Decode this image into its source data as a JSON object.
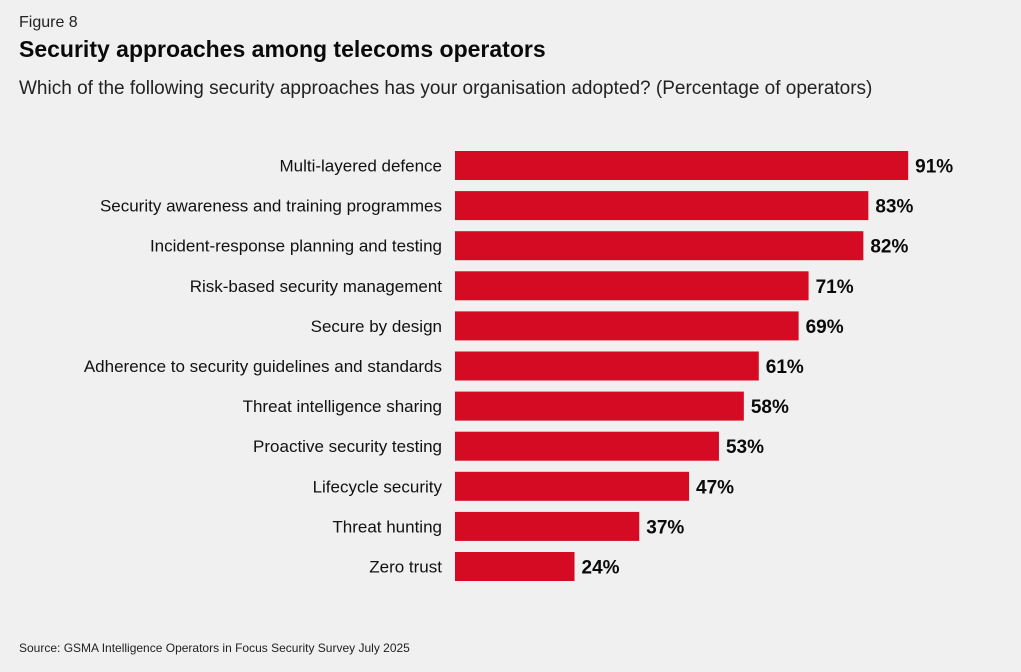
{
  "figure_label": "Figure 8",
  "source": "Source: GSMA Intelligence Operators in Focus Security Survey July 2025",
  "chart_data": {
    "type": "bar",
    "orientation": "horizontal",
    "title": "Security approaches among telecoms operators",
    "subtitle": "Which of the following security approaches has your organisation adopted? (Percentage of operators)",
    "xlabel": "",
    "ylabel": "",
    "xlim": [
      0,
      100
    ],
    "grid": false,
    "bar_color": "#D50A23",
    "value_suffix": "%",
    "categories": [
      "Multi-layered defence",
      "Security awareness and training programmes",
      "Incident-response planning and testing",
      "Risk-based security management",
      "Secure by design",
      "Adherence to security guidelines and standards",
      "Threat intelligence sharing",
      "Proactive security testing",
      "Lifecycle security",
      "Threat hunting",
      "Zero trust"
    ],
    "values": [
      91,
      83,
      82,
      71,
      69,
      61,
      58,
      53,
      47,
      37,
      24
    ]
  }
}
